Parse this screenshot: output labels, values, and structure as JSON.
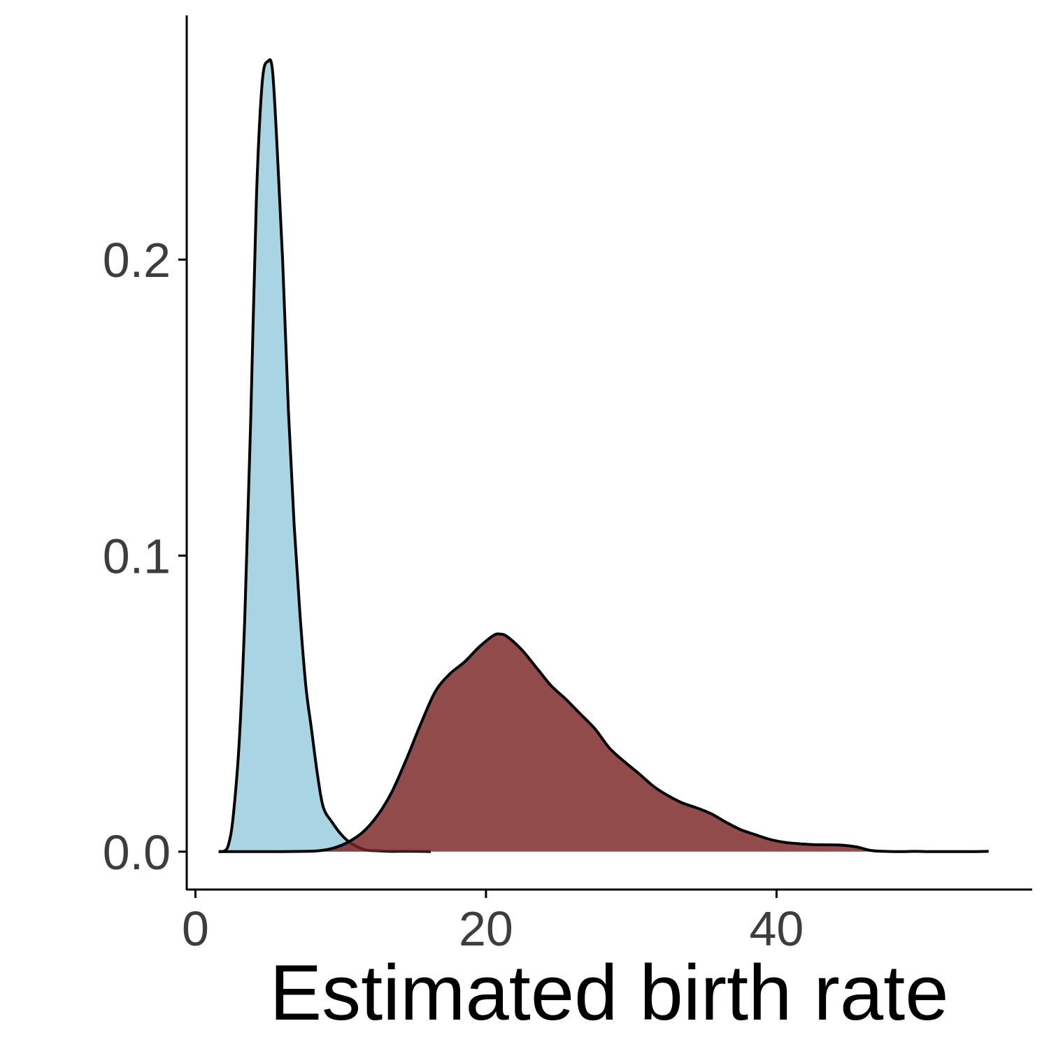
{
  "chart_data": {
    "type": "area",
    "title": "",
    "xlabel": "Estimated birth rate",
    "ylabel": "",
    "xlim": [
      -0.6,
      57.6
    ],
    "ylim": [
      -0.0128,
      0.2825
    ],
    "x_ticks": [
      0,
      20,
      40
    ],
    "x_tick_labels": [
      "0",
      "20",
      "40"
    ],
    "y_ticks": [
      0.0,
      0.1,
      0.2
    ],
    "y_tick_labels": [
      "0.0",
      "0.1",
      "0.2"
    ],
    "grid": false,
    "legend": "none",
    "series": [
      {
        "fill": "#a8d4e3",
        "stroke": "#000000",
        "x": [
          1.6,
          2.0,
          2.3,
          2.6,
          3.0,
          3.4,
          3.8,
          4.2,
          4.6,
          5.0,
          5.3,
          5.6,
          6.0,
          6.4,
          6.8,
          7.2,
          7.6,
          8.0,
          8.4,
          8.8,
          9.4,
          10.0,
          10.6,
          11.2,
          11.8,
          12.5,
          13.4,
          14.5,
          15.6,
          16.2
        ],
        "y": [
          0.0,
          0.0002,
          0.0028,
          0.012,
          0.036,
          0.0795,
          0.145,
          0.221,
          0.26,
          0.267,
          0.264,
          0.24,
          0.2,
          0.149,
          0.11,
          0.08,
          0.056,
          0.041,
          0.026,
          0.015,
          0.01,
          0.006,
          0.0032,
          0.0015,
          0.0005,
          0.0003,
          0.0001,
          0.00015,
          0.0001,
          0.0
        ]
      },
      {
        "fill": "#7a2323",
        "stroke": "#000000",
        "x": [
          1.6,
          4.0,
          6.0,
          7.5,
          8.5,
          9.5,
          10.5,
          11.5,
          12.5,
          13.5,
          14.5,
          15.5,
          16.5,
          17.5,
          18.5,
          19.5,
          20.5,
          21.0,
          21.5,
          22.5,
          23.5,
          24.5,
          25.5,
          26.5,
          27.5,
          28.5,
          29.5,
          30.5,
          31.5,
          32.5,
          33.5,
          34.5,
          35.5,
          36.5,
          37.5,
          38.5,
          39.5,
          40.5,
          41.5,
          42.5,
          43.5,
          44.5,
          45.5,
          46.5,
          47.5,
          48.5,
          49.5,
          50.5,
          51.5,
          52.5,
          53.5,
          54.6
        ],
        "y": [
          0.0,
          0.0,
          0.0,
          0.0001,
          0.0003,
          0.0012,
          0.0032,
          0.0065,
          0.012,
          0.02,
          0.031,
          0.043,
          0.054,
          0.06,
          0.064,
          0.069,
          0.073,
          0.0735,
          0.0725,
          0.068,
          0.062,
          0.056,
          0.0515,
          0.0465,
          0.0415,
          0.035,
          0.0305,
          0.0265,
          0.0222,
          0.019,
          0.0165,
          0.0148,
          0.0128,
          0.01,
          0.0075,
          0.0058,
          0.0042,
          0.0032,
          0.0027,
          0.0024,
          0.0023,
          0.0022,
          0.0016,
          0.0004,
          0.0001,
          0.0,
          0.0001,
          0.0,
          0.0,
          0.0,
          0.0,
          0.0001
        ]
      }
    ]
  }
}
